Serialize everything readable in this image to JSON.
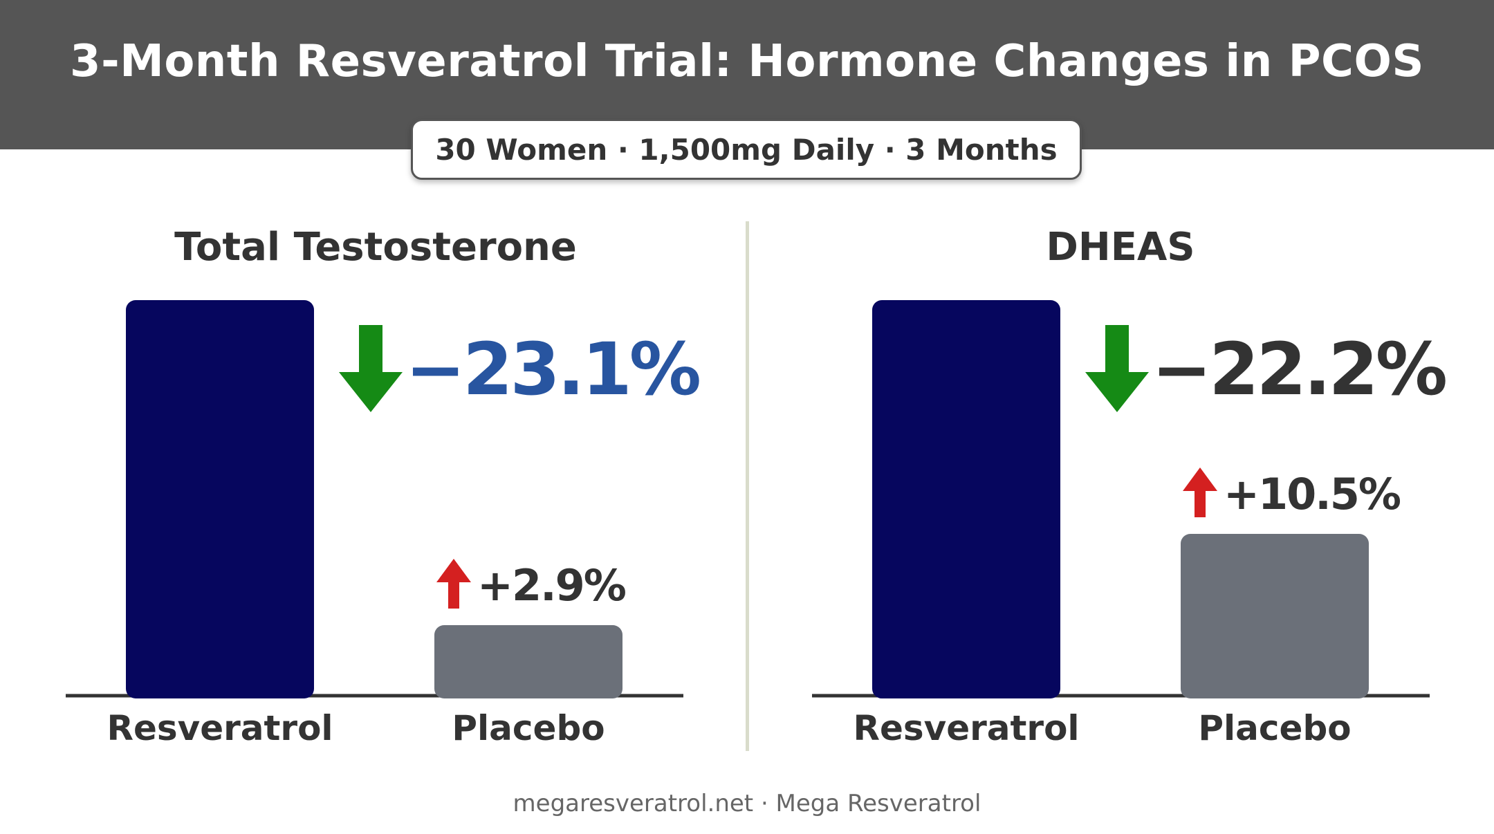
{
  "title": "3-Month Resveratrol Trial: Hormone Changes in PCOS",
  "subtitle": "30 Women · 1,500mg Daily · 3 Months",
  "footer": "megaresveratrol.net · Mega Resveratrol",
  "colors": {
    "resveratrol_bar": "#06065e",
    "placebo_bar": "#6b7079",
    "down_arrow": "#158a15",
    "up_arrow": "#d42020",
    "testosterone_change": "#2855a0",
    "dheas_change": "#333333"
  },
  "chart_data": [
    {
      "type": "bar",
      "title": "Total Testosterone",
      "categories": [
        "Resveratrol",
        "Placebo"
      ],
      "values": [
        -23.1,
        2.9
      ],
      "labels": [
        "−23.1%",
        "+2.9%"
      ],
      "direction": [
        "down-arrow-icon",
        "up-arrow-icon"
      ]
    },
    {
      "type": "bar",
      "title": "DHEAS",
      "categories": [
        "Resveratrol",
        "Placebo"
      ],
      "values": [
        -22.2,
        10.5
      ],
      "labels": [
        "−22.2%",
        "+10.5%"
      ],
      "direction": [
        "down-arrow-icon",
        "up-arrow-icon"
      ]
    }
  ]
}
